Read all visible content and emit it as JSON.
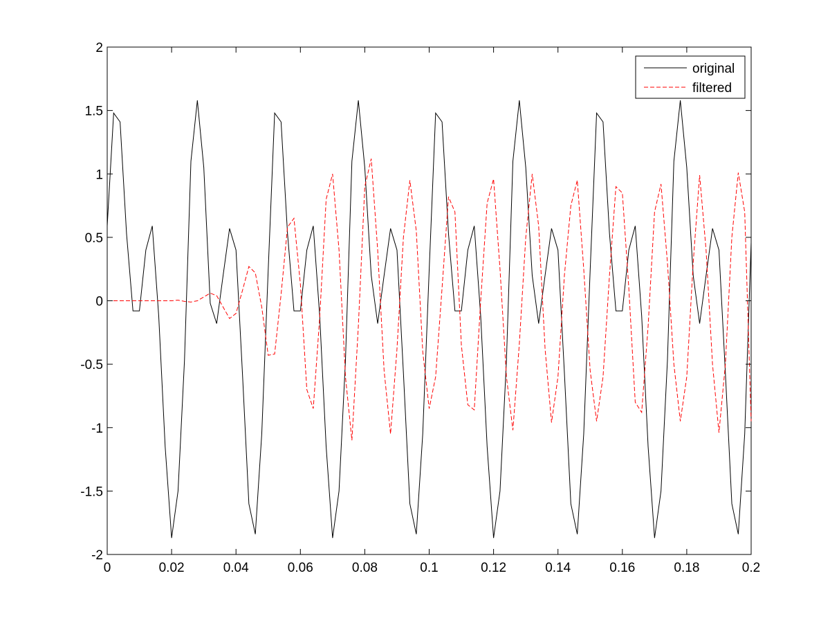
{
  "chart_data": {
    "type": "line",
    "title": "",
    "xlabel": "",
    "ylabel": "",
    "xlim": [
      0,
      0.2
    ],
    "ylim": [
      -2,
      2
    ],
    "xticks": [
      0,
      0.02,
      0.04,
      0.06,
      0.08,
      0.1,
      0.12,
      0.14,
      0.16,
      0.18,
      0.2
    ],
    "xtick_labels": [
      "0",
      "0.02",
      "0.04",
      "0.06",
      "0.08",
      "0.1",
      "0.12",
      "0.14",
      "0.16",
      "0.18",
      "0.2"
    ],
    "yticks": [
      -2,
      -1.5,
      -1,
      -0.5,
      0,
      0.5,
      1,
      1.5,
      2
    ],
    "ytick_labels": [
      "-2",
      "-1.5",
      "-1",
      "-0.5",
      "0",
      "0.5",
      "1",
      "1.5",
      "2"
    ],
    "grid": false,
    "legend_position": "top-right",
    "x": [
      0,
      0.002,
      0.004,
      0.006,
      0.008,
      0.01,
      0.012,
      0.014,
      0.016,
      0.018,
      0.02,
      0.022,
      0.024,
      0.026,
      0.028,
      0.03,
      0.032,
      0.034,
      0.036,
      0.038,
      0.04,
      0.042,
      0.044,
      0.046,
      0.048,
      0.05,
      0.052,
      0.054,
      0.056,
      0.058,
      0.06,
      0.062,
      0.064,
      0.066,
      0.068,
      0.07,
      0.072,
      0.074,
      0.076,
      0.078,
      0.08,
      0.082,
      0.084,
      0.086,
      0.088,
      0.09,
      0.092,
      0.094,
      0.096,
      0.098,
      0.1,
      0.102,
      0.104,
      0.106,
      0.108,
      0.11,
      0.112,
      0.114,
      0.116,
      0.118,
      0.12,
      0.122,
      0.124,
      0.126,
      0.128,
      0.13,
      0.132,
      0.134,
      0.136,
      0.138,
      0.14,
      0.142,
      0.144,
      0.146,
      0.148,
      0.15,
      0.152,
      0.154,
      0.156,
      0.158,
      0.16,
      0.162,
      0.164,
      0.166,
      0.168,
      0.17,
      0.172,
      0.174,
      0.176,
      0.178,
      0.18,
      0.182,
      0.184,
      0.186,
      0.188,
      0.19,
      0.192,
      0.194,
      0.196,
      0.198,
      0.2
    ],
    "series": [
      {
        "name": "original",
        "color": "#000000",
        "style": "solid",
        "values": [
          0.59,
          1.48,
          1.41,
          0.53,
          -0.08,
          -0.08,
          0.4,
          0.59,
          -0.12,
          -1.15,
          -1.87,
          -1.5,
          -0.47,
          1.1,
          1.58,
          1.05,
          -0.02,
          -0.18,
          0.2,
          0.57,
          0.4,
          -0.57,
          -1.6,
          -1.84,
          -1.05,
          0.24,
          1.48,
          1.41,
          0.53,
          -0.08,
          -0.08,
          0.4,
          0.59,
          -0.12,
          -1.15,
          -1.87,
          -1.5,
          -0.47,
          1.1,
          1.58,
          1.05,
          0.2,
          -0.18,
          0.2,
          0.57,
          0.4,
          -0.57,
          -1.6,
          -1.84,
          -1.05,
          0.24,
          1.48,
          1.41,
          0.53,
          -0.08,
          -0.08,
          0.4,
          0.59,
          -0.12,
          -1.15,
          -1.87,
          -1.5,
          -0.47,
          1.1,
          1.58,
          1.05,
          0.2,
          -0.18,
          0.2,
          0.57,
          0.4,
          -0.57,
          -1.6,
          -1.84,
          -1.05,
          0.24,
          1.48,
          1.41,
          0.53,
          -0.08,
          -0.08,
          0.4,
          0.59,
          -0.12,
          -1.15,
          -1.87,
          -1.5,
          -0.47,
          1.1,
          1.58,
          1.05,
          0.2,
          -0.18,
          0.2,
          0.57,
          0.4,
          -0.57,
          -1.6,
          -1.84,
          -1.05,
          0.46
        ]
      },
      {
        "name": "filtered",
        "color": "#ff0000",
        "style": "dashed",
        "values": [
          0,
          0,
          0,
          0,
          0,
          0,
          0,
          0,
          0,
          0,
          0,
          0.005,
          -0.005,
          -0.01,
          0,
          0.03,
          0.06,
          0.04,
          -0.05,
          -0.14,
          -0.1,
          0.08,
          0.27,
          0.22,
          -0.05,
          -0.43,
          -0.42,
          0.05,
          0.58,
          0.65,
          0.13,
          -0.7,
          -0.85,
          -0.13,
          0.8,
          1.0,
          0.4,
          -0.6,
          -1.1,
          -0.2,
          0.9,
          1.12,
          0.4,
          -0.55,
          -1.05,
          -0.38,
          0.5,
          0.95,
          0.55,
          -0.4,
          -0.85,
          -0.6,
          0.1,
          0.82,
          0.7,
          -0.35,
          -0.82,
          -0.86,
          0.0,
          0.77,
          0.96,
          0.25,
          -0.6,
          -1.02,
          -0.34,
          0.5,
          1.0,
          0.59,
          -0.38,
          -0.96,
          -0.6,
          0.2,
          0.75,
          0.95,
          0.25,
          -0.55,
          -0.95,
          -0.6,
          0.2,
          0.9,
          0.85,
          0.1,
          -0.8,
          -0.88,
          -0.2,
          0.7,
          0.92,
          0.3,
          -0.5,
          -0.95,
          -0.6,
          0.3,
          0.99,
          0.4,
          -0.5,
          -1.04,
          -0.5,
          0.5,
          1.01,
          0.7,
          -0.95
        ]
      }
    ]
  }
}
